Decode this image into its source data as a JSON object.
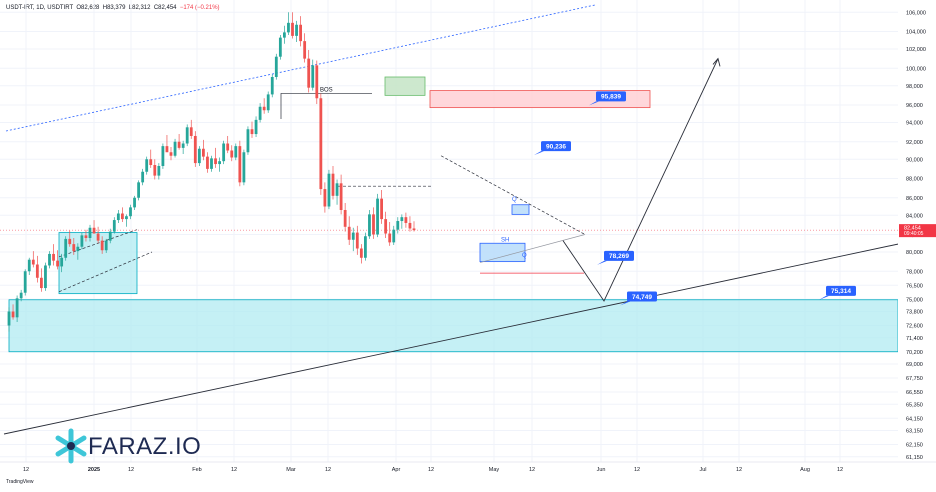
{
  "header": {
    "symbol": "USDT-IRT, 1D, USDTIRT",
    "o": "O82,628",
    "h": "H83,379",
    "l": "L82,312",
    "c": "C82,454",
    "change": "−174 (−0.21%)"
  },
  "brand": {
    "name": "FARAZ.IO",
    "watermark": "TradingView",
    "logo_icon": "faraz-asterisk-icon"
  },
  "colors": {
    "up": "#26a69a",
    "down": "#ef5350",
    "price_tag": "#f23645",
    "callout": "#2962ff",
    "zone_cyan": "#80deea",
    "zone_red": "#ffcdd2",
    "zone_green": "#c8e6c9",
    "trend_dotted": "#2962ff"
  },
  "chart_data": {
    "type": "candlestick",
    "timeframe": "1D",
    "y_ticks": [
      "106,000",
      "104,000",
      "102,000",
      "100,000",
      "98,000",
      "96,000",
      "94,000",
      "92,000",
      "90,000",
      "88,000",
      "86,000",
      "84,000",
      "82,000",
      "80,000",
      "78,000",
      "76,500",
      "75,000",
      "73,800",
      "72,600",
      "71,400",
      "70,200",
      "69,000",
      "67,750",
      "66,550",
      "65,350",
      "64,150",
      "63,150",
      "62,150",
      "61,150"
    ],
    "x_ticks": [
      "12",
      "2025",
      "12",
      "Feb",
      "12",
      "Mar",
      "12",
      "Apr",
      "12",
      "May",
      "12",
      "Jun",
      "12",
      "Jul",
      "12",
      "Aug",
      "12"
    ],
    "last_price": {
      "value": 82454,
      "label": "82,454",
      "countdown": "09:40:05"
    },
    "callouts": [
      "95,839",
      "90,236",
      "78,269",
      "74,749",
      "75,314"
    ],
    "annotations": [
      "BOS",
      "SH",
      "Q",
      "Q"
    ],
    "zones": [
      {
        "name": "demand-zone-main",
        "from": 70200,
        "to": 74950
      },
      {
        "name": "supply-zone-red",
        "from": 95700,
        "to": 97500
      },
      {
        "name": "breakout-zone-green",
        "from": 97000,
        "to": 99000
      },
      {
        "name": "base-zone-jan",
        "from": 75600,
        "to": 82200
      }
    ],
    "candles": [
      [
        72600,
        74200,
        72000,
        73800
      ],
      [
        73800,
        74500,
        73100,
        73300
      ],
      [
        73300,
        75400,
        72900,
        75100
      ],
      [
        75100,
        76000,
        74800,
        75700
      ],
      [
        75700,
        78200,
        75400,
        78000
      ],
      [
        78000,
        79400,
        77600,
        79200
      ],
      [
        79200,
        80100,
        78400,
        78700
      ],
      [
        78700,
        79600,
        76800,
        77300
      ],
      [
        77300,
        78300,
        75800,
        76200
      ],
      [
        76200,
        78900,
        75900,
        78600
      ],
      [
        78600,
        80100,
        78300,
        79800
      ],
      [
        79800,
        80900,
        78600,
        79100
      ],
      [
        79100,
        80200,
        78200,
        78500
      ],
      [
        78500,
        79800,
        77900,
        79400
      ],
      [
        79400,
        81800,
        79100,
        81500
      ],
      [
        81500,
        82400,
        80600,
        80900
      ],
      [
        80900,
        81600,
        79700,
        80100
      ],
      [
        80100,
        81000,
        79200,
        80600
      ],
      [
        80600,
        82200,
        80300,
        81900
      ],
      [
        81900,
        82500,
        81200,
        81600
      ],
      [
        81600,
        83000,
        81200,
        82700
      ],
      [
        82700,
        83500,
        82300,
        82100
      ],
      [
        82100,
        82800,
        81000,
        81300
      ],
      [
        81300,
        81800,
        79800,
        80200
      ],
      [
        80200,
        81500,
        79900,
        81300
      ],
      [
        81300,
        82600,
        81000,
        82300
      ],
      [
        82300,
        83800,
        82100,
        83500
      ],
      [
        83500,
        84600,
        83200,
        84200
      ],
      [
        84200,
        84900,
        83300,
        83600
      ],
      [
        83600,
        84100,
        82800,
        83900
      ],
      [
        83900,
        85200,
        83600,
        84900
      ],
      [
        84900,
        86200,
        84600,
        86000
      ],
      [
        86000,
        87800,
        85700,
        87600
      ],
      [
        87600,
        89000,
        87300,
        88700
      ],
      [
        88700,
        90300,
        88400,
        90000
      ],
      [
        90000,
        91100,
        89100,
        89400
      ],
      [
        89400,
        90000,
        87900,
        88300
      ],
      [
        88300,
        89600,
        87900,
        89300
      ],
      [
        89300,
        91800,
        89000,
        91500
      ],
      [
        91500,
        92700,
        91100,
        90800
      ],
      [
        90800,
        91400,
        89900,
        90400
      ],
      [
        90400,
        92300,
        90200,
        92000
      ],
      [
        92000,
        92800,
        91100,
        91300
      ],
      [
        91300,
        92100,
        90600,
        91800
      ],
      [
        91800,
        93800,
        91500,
        93500
      ],
      [
        93500,
        94300,
        92300,
        92600
      ],
      [
        92600,
        93100,
        89200,
        89600
      ],
      [
        89600,
        91500,
        89300,
        91200
      ],
      [
        91200,
        92200,
        89900,
        90300
      ],
      [
        90300,
        90800,
        88600,
        89000
      ],
      [
        89000,
        90400,
        88700,
        90100
      ],
      [
        90100,
        91300,
        89100,
        89500
      ],
      [
        89500,
        90200,
        88700,
        89800
      ],
      [
        89800,
        92100,
        89500,
        91800
      ],
      [
        91800,
        92600,
        90700,
        91000
      ],
      [
        91000,
        91600,
        89800,
        90200
      ],
      [
        90200,
        91800,
        89900,
        91500
      ],
      [
        91500,
        92100,
        87200,
        87600
      ],
      [
        87600,
        91100,
        87300,
        90800
      ],
      [
        90800,
        93600,
        90500,
        93300
      ],
      [
        93300,
        94100,
        92400,
        92800
      ],
      [
        92800,
        94700,
        92500,
        94300
      ],
      [
        94300,
        96200,
        94000,
        95800
      ],
      [
        95800,
        96700,
        95000,
        95400
      ],
      [
        95400,
        97400,
        95100,
        97100
      ],
      [
        97100,
        99300,
        96800,
        99000
      ],
      [
        99000,
        101500,
        98700,
        101200
      ],
      [
        101200,
        103600,
        100900,
        103300
      ],
      [
        103300,
        104600,
        102600,
        103900
      ],
      [
        103900,
        106300,
        103600,
        104900
      ],
      [
        104900,
        106400,
        103200,
        103500
      ],
      [
        103500,
        105100,
        102800,
        104700
      ],
      [
        104700,
        105600,
        102300,
        102900
      ],
      [
        102900,
        103800,
        100600,
        101000
      ],
      [
        101000,
        101900,
        97300,
        97800
      ],
      [
        97800,
        100900,
        97500,
        100300
      ],
      [
        100300,
        100800,
        96100,
        96700
      ],
      [
        96700,
        97200,
        86300,
        86900
      ],
      [
        86900,
        87600,
        84300,
        85000
      ],
      [
        85000,
        88900,
        84700,
        88500
      ],
      [
        88500,
        89300,
        85800,
        86200
      ],
      [
        86200,
        87900,
        85200,
        87500
      ],
      [
        87500,
        88400,
        84100,
        84600
      ],
      [
        84600,
        85400,
        82300,
        82800
      ],
      [
        82800,
        83900,
        80800,
        81400
      ],
      [
        81400,
        82700,
        80100,
        82200
      ],
      [
        82200,
        82900,
        79700,
        80400
      ],
      [
        80400,
        80900,
        78800,
        79400
      ],
      [
        79400,
        82200,
        79100,
        81800
      ],
      [
        81800,
        84600,
        81500,
        84100
      ],
      [
        84100,
        84900,
        81500,
        82000
      ],
      [
        82000,
        86400,
        81700,
        85900
      ],
      [
        85900,
        86800,
        83100,
        83600
      ],
      [
        83600,
        84400,
        81600,
        82100
      ],
      [
        82100,
        83300,
        80700,
        81100
      ],
      [
        81100,
        82900,
        80800,
        82500
      ],
      [
        82500,
        83800,
        82100,
        83400
      ],
      [
        83400,
        84100,
        82600,
        83800
      ],
      [
        83800,
        84300,
        82700,
        83200
      ],
      [
        83200,
        83900,
        82300,
        82628
      ],
      [
        82628,
        83379,
        82312,
        82454
      ]
    ]
  }
}
